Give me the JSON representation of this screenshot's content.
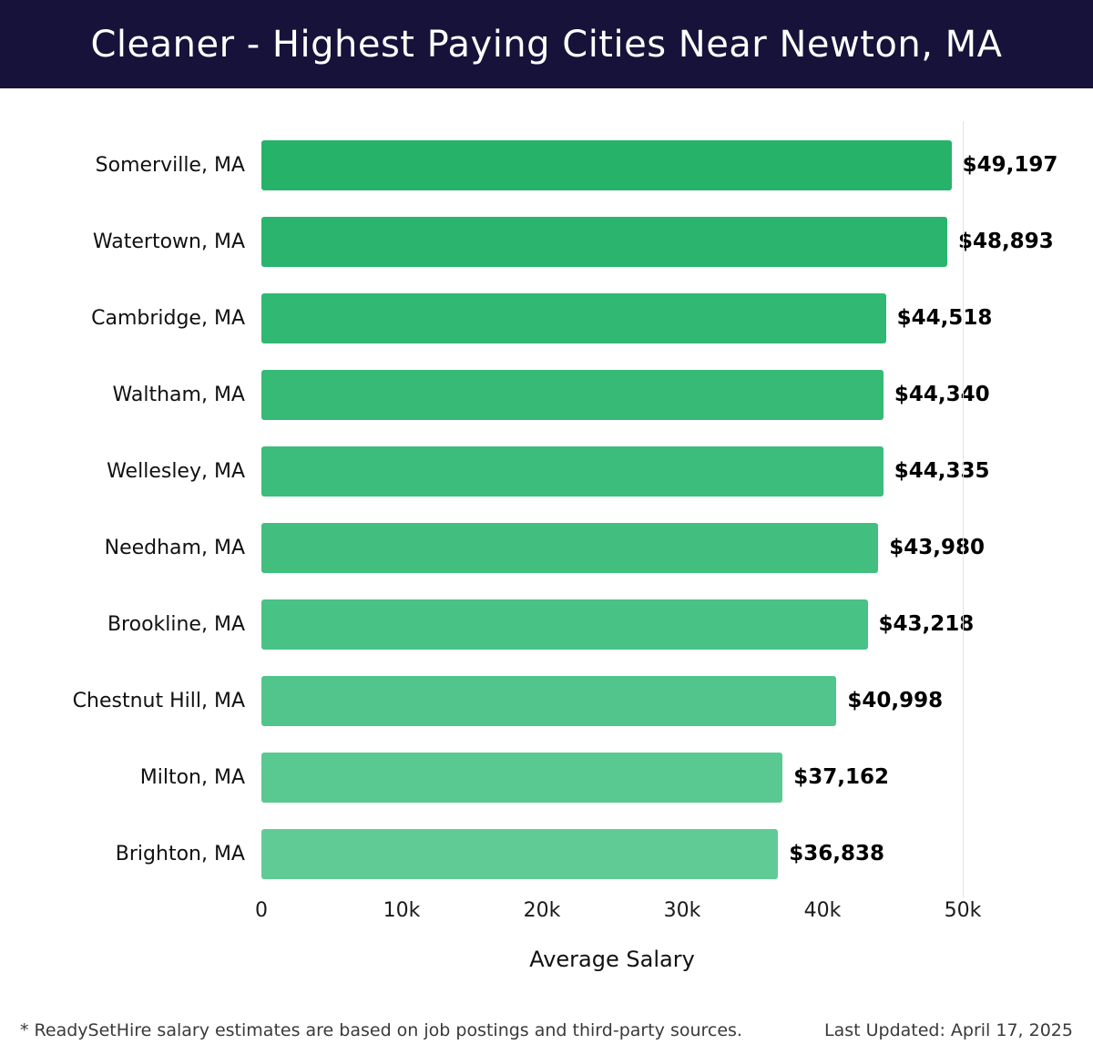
{
  "header": {
    "title": "Cleaner - Highest Paying Cities Near Newton, MA",
    "bg_color": "#16123a"
  },
  "chart_data": {
    "type": "bar",
    "orientation": "horizontal",
    "title": "Cleaner - Highest Paying Cities Near Newton, MA",
    "categories": [
      "Somerville, MA",
      "Watertown, MA",
      "Cambridge, MA",
      "Waltham, MA",
      "Wellesley, MA",
      "Needham, MA",
      "Brookline, MA",
      "Chestnut Hill, MA",
      "Milton, MA",
      "Brighton, MA"
    ],
    "values": [
      49197,
      48893,
      44518,
      44340,
      44335,
      43980,
      43218,
      40998,
      37162,
      36838
    ],
    "value_labels": [
      "$49,197",
      "$48,893",
      "$44,518",
      "$44,340",
      "$44,335",
      "$43,980",
      "$43,218",
      "$40,998",
      "$37,162",
      "$36,838"
    ],
    "bar_colors": [
      "#26b269",
      "#2ab46d",
      "#31b872",
      "#37ba76",
      "#3cbd7b",
      "#42bf7f",
      "#49c285",
      "#51c58b",
      "#5ac991",
      "#61cb96"
    ],
    "xlabel": "Average Salary",
    "ylabel": "",
    "xlim": [
      0,
      50000
    ],
    "x_ticks": [
      "0",
      "10k",
      "20k",
      "30k",
      "40k",
      "50k"
    ],
    "x_tick_values": [
      0,
      10000,
      20000,
      30000,
      40000,
      50000
    ],
    "grid": "single vertical gridline at 50k",
    "gridline_color": "#e3e3e3",
    "legend": "none"
  },
  "footer": {
    "note": "* ReadySetHire salary estimates are based on job postings and third-party sources.",
    "last_updated": "Last Updated: April 17, 2025"
  }
}
